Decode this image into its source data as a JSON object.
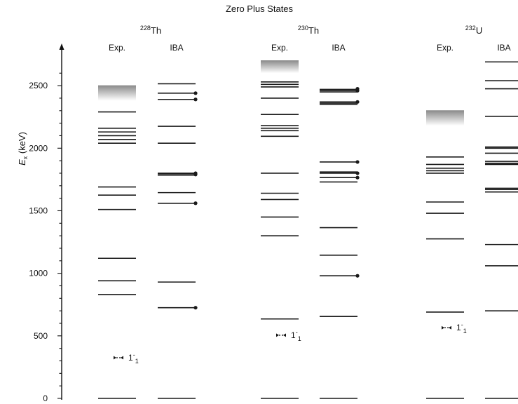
{
  "title": "Zero Plus States",
  "y_axis": {
    "label_symbol": "E",
    "label_subscript": "x",
    "label_unit": " (keV)",
    "ticks": [
      0,
      500,
      1000,
      1500,
      2000,
      2500
    ],
    "min": 0,
    "max": 2700
  },
  "colors": {
    "level": "#1a1a1a",
    "shading_dark": "#8c8c8c",
    "shading_light": "#ffffff"
  },
  "nuclei": [
    {
      "mass": "228",
      "element": "Th",
      "columns": [
        {
          "label": "Exp.",
          "levels": [
            0,
            830,
            940,
            1120,
            1510,
            1625,
            1690,
            2040,
            2070,
            2100,
            2130,
            2160,
            2290
          ],
          "shaded_from": 2380,
          "shaded_to": 2500,
          "annotation": {
            "energy": 325,
            "text": "1",
            "sup": "-",
            "sub": "1"
          }
        },
        {
          "label": "IBA",
          "levels": [
            0,
            725,
            930,
            1560,
            1645,
            1785,
            1795,
            1800,
            2040,
            2175,
            2390,
            2440,
            2515
          ],
          "dotted": [
            725,
            1560,
            1790,
            1800,
            2390,
            2440
          ]
        }
      ]
    },
    {
      "mass": "230",
      "element": "Th",
      "columns": [
        {
          "label": "Exp.",
          "levels": [
            0,
            635,
            1300,
            1450,
            1590,
            1640,
            1800,
            2095,
            2140,
            2160,
            2180,
            2270,
            2400,
            2490,
            2510,
            2530
          ],
          "shaded_from": 2600,
          "shaded_to": 2700,
          "annotation": {
            "energy": 505,
            "text": "1",
            "sup": "-",
            "sub": "1"
          }
        },
        {
          "label": "IBA",
          "levels": [
            0,
            655,
            980,
            1145,
            1365,
            1730,
            1765,
            1800,
            1810,
            1890,
            2350,
            2360,
            2370,
            2450,
            2460,
            2470
          ],
          "dotted": [
            980,
            1765,
            1800,
            1890,
            2370,
            2460,
            2475
          ]
        }
      ]
    },
    {
      "mass": "232",
      "element": "U",
      "columns": [
        {
          "label": "Exp.",
          "levels": [
            0,
            690,
            1275,
            1480,
            1570,
            1800,
            1820,
            1840,
            1870,
            1930
          ],
          "shaded_from": 2180,
          "shaded_to": 2300,
          "annotation": {
            "energy": 565,
            "text": "1",
            "sup": "-",
            "sub": "1"
          }
        },
        {
          "label": "IBA",
          "levels": [
            0,
            700,
            1060,
            1230,
            1650,
            1670,
            1680,
            1870,
            1880,
            1895,
            1960,
            2000,
            2010,
            2255,
            2475,
            2540,
            2690
          ]
        }
      ]
    }
  ]
}
